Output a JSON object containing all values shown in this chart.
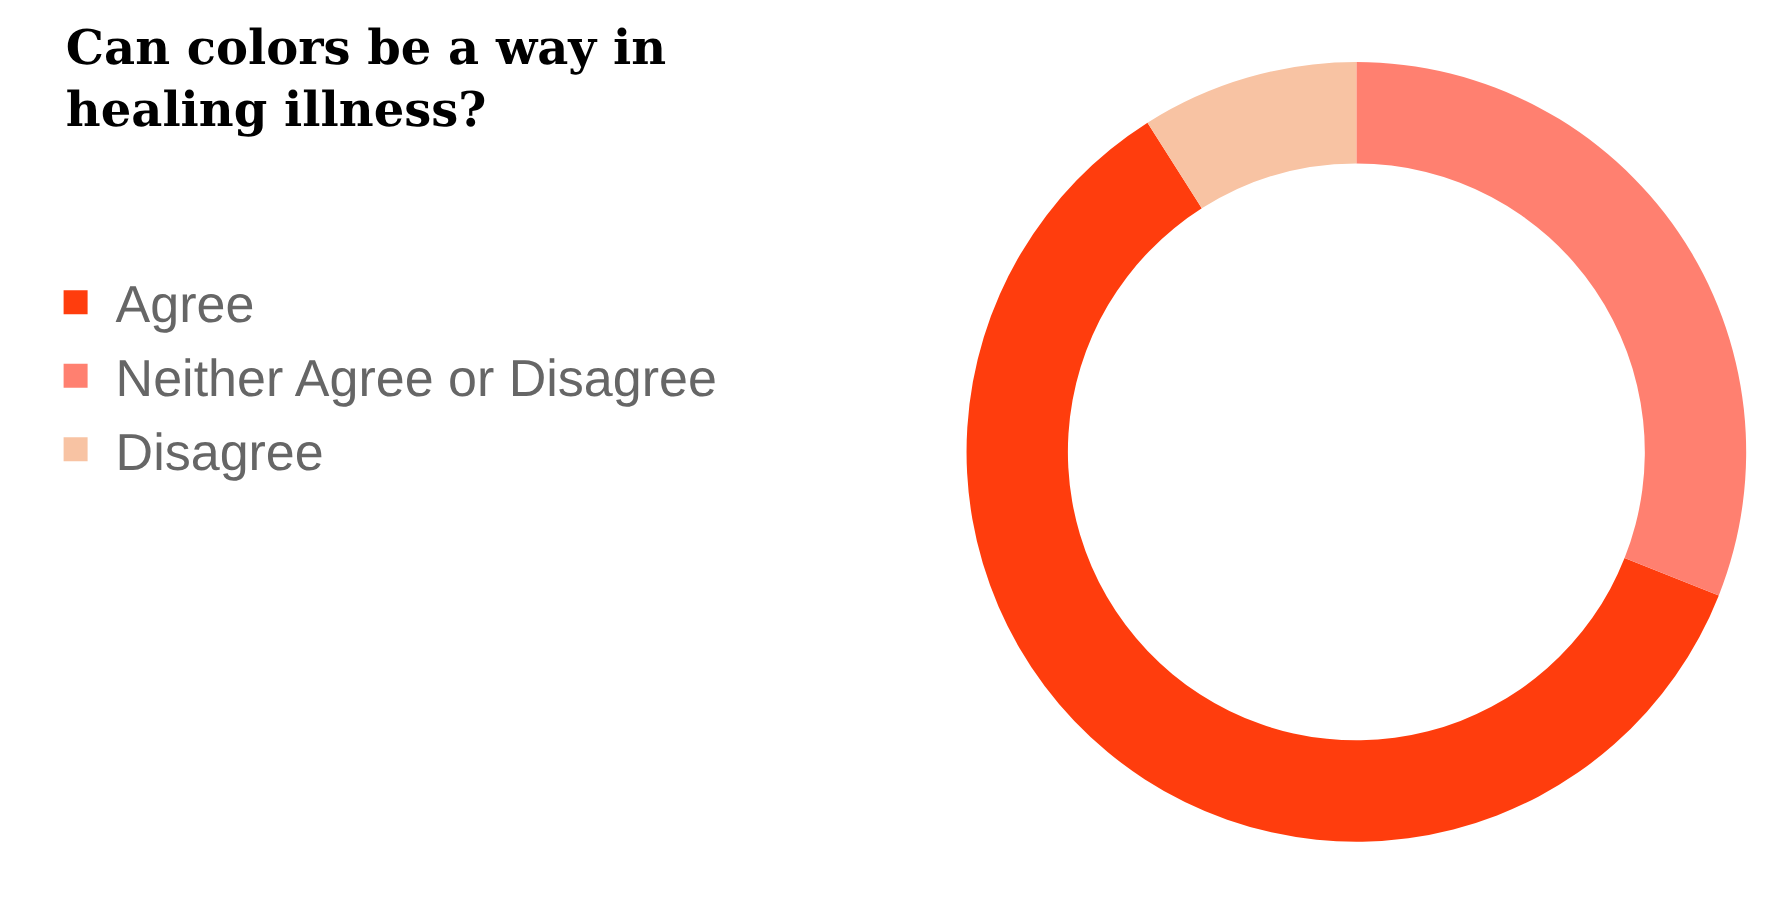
{
  "chart_data": {
    "type": "donut",
    "title": "Can colors be a way in healing illness?",
    "categories": [
      "Agree",
      "Neither Agree or Disagree",
      "Disagree"
    ],
    "values": [
      60,
      31,
      9
    ],
    "colors": [
      "#ff3d0d",
      "#ff8070",
      "#f8c3a3"
    ],
    "legend": "left"
  }
}
